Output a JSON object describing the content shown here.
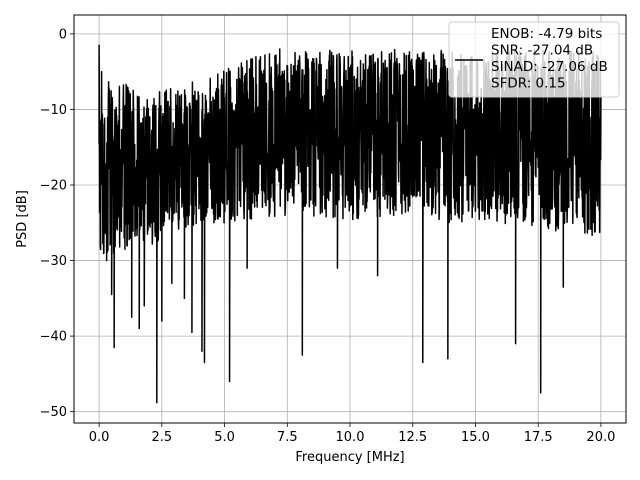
{
  "chart_data": {
    "type": "line",
    "title": "",
    "xlabel": "Frequency [MHz]",
    "ylabel": "PSD [dB]",
    "xlim": [
      -1.0,
      21.0
    ],
    "ylim": [
      -51.5,
      2.5
    ],
    "xticks": [
      0.0,
      2.5,
      5.0,
      7.5,
      10.0,
      12.5,
      15.0,
      17.5,
      20.0
    ],
    "xtick_labels": [
      "0.0",
      "2.5",
      "5.0",
      "7.5",
      "10.0",
      "12.5",
      "15.0",
      "17.5",
      "20.0"
    ],
    "yticks": [
      0,
      -10,
      -20,
      -30,
      -40,
      -50
    ],
    "ytick_labels": [
      "0",
      "−10",
      "−20",
      "−30",
      "−40",
      "−50"
    ],
    "grid": true,
    "legend_position": "top-right",
    "legend_lines": [
      "ENOB: -4.79 bits",
      "SNR: -27.04 dB",
      "SINAD: -27.06 dB",
      "SFDR: 0.15"
    ],
    "series": [
      {
        "color": "#000000",
        "x_range": [
          0.0,
          20.0
        ],
        "description_points": [
          [
            0.0,
            -1.5
          ],
          [
            0.05,
            -28
          ],
          [
            0.1,
            -5
          ],
          [
            0.15,
            -25
          ],
          [
            0.2,
            -12
          ],
          [
            0.3,
            -30
          ],
          [
            0.5,
            -34.5
          ],
          [
            0.6,
            -41.5
          ],
          [
            1.0,
            -27
          ],
          [
            1.3,
            -37.5
          ],
          [
            1.6,
            -39
          ],
          [
            1.8,
            -36
          ],
          [
            2.3,
            -48.8
          ],
          [
            2.5,
            -38
          ],
          [
            2.9,
            -33
          ],
          [
            3.4,
            -35
          ],
          [
            3.7,
            -39.5
          ],
          [
            4.1,
            -42
          ],
          [
            4.2,
            -43.5
          ],
          [
            5.2,
            -46
          ],
          [
            5.9,
            -31
          ],
          [
            7.2,
            -2
          ],
          [
            8.1,
            -42.5
          ],
          [
            9.5,
            -31
          ],
          [
            10.1,
            -3
          ],
          [
            11.1,
            -32
          ],
          [
            12.9,
            -43.5
          ],
          [
            13.9,
            -43
          ],
          [
            16.6,
            -41
          ],
          [
            17.6,
            -47.5
          ],
          [
            18.5,
            -33.5
          ]
        ],
        "upper_envelope": [
          -5,
          -8,
          -6,
          -3,
          -2,
          -2,
          -2,
          -2,
          -2,
          -2,
          -2
        ],
        "lower_envelope": [
          -30,
          -28,
          -25,
          -25,
          -24,
          -25,
          -24,
          -25,
          -25,
          -26,
          -27
        ],
        "envelope_x": [
          0,
          2,
          4,
          6,
          8,
          10,
          12,
          14,
          16,
          18,
          20
        ]
      }
    ]
  }
}
